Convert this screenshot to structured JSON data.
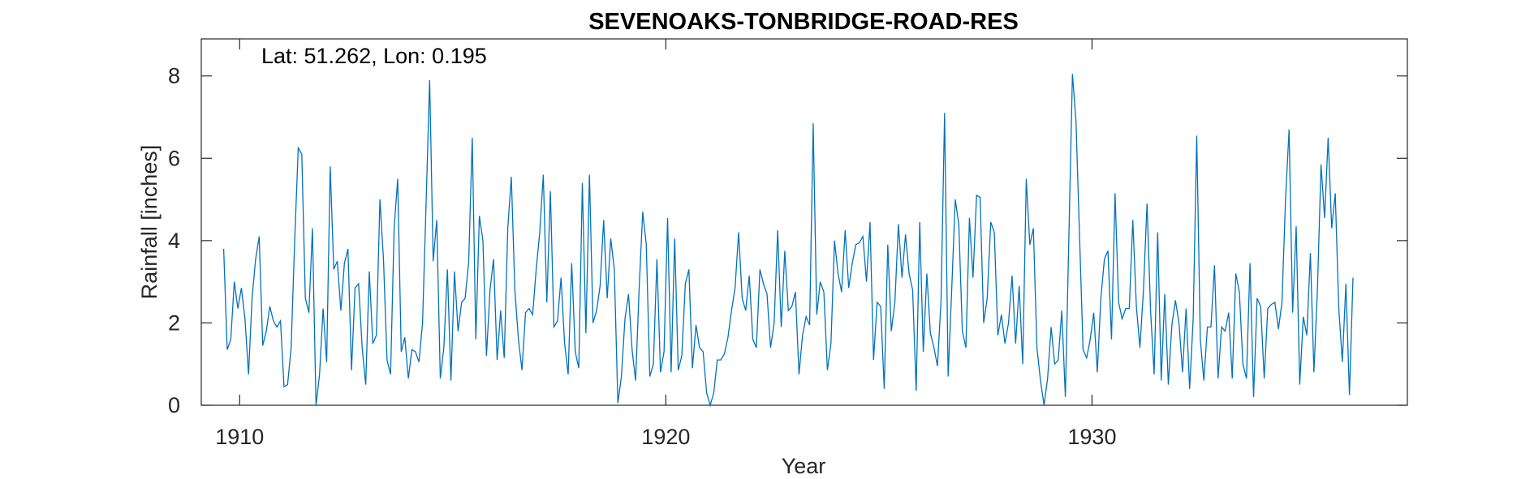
{
  "chart_data": {
    "type": "line",
    "title": "SEVENOAKS-TONBRIDGE-ROAD-RES",
    "xlabel": "Year",
    "ylabel": "Rainfall [inches]",
    "annotation": "Lat: 51.262, Lon: 0.195",
    "xlim": [
      1909.1,
      1937.4
    ],
    "ylim": [
      0,
      8.9
    ],
    "x_ticks": [
      1910,
      1920,
      1930
    ],
    "y_ticks": [
      0,
      2,
      4,
      6,
      8
    ],
    "grid": false,
    "line_color": "#0072BD",
    "series": [
      {
        "x_start": 1909.625,
        "x_step": 0.08333,
        "values": [
          3.8,
          1.35,
          1.6,
          3.0,
          2.35,
          2.85,
          2.1,
          0.75,
          2.6,
          3.55,
          4.1,
          1.45,
          1.8,
          2.4,
          2.05,
          1.9,
          2.05,
          0.45,
          0.5,
          1.4,
          4.0,
          6.25,
          6.1,
          2.6,
          2.25,
          4.3,
          0.0,
          0.75,
          2.35,
          1.05,
          5.8,
          3.3,
          3.5,
          2.3,
          3.45,
          3.8,
          0.85,
          2.85,
          2.95,
          1.4,
          0.5,
          3.25,
          1.5,
          1.7,
          5.0,
          3.55,
          1.1,
          0.75,
          4.3,
          5.5,
          1.3,
          1.65,
          0.65,
          1.35,
          1.3,
          1.05,
          2.0,
          4.9,
          7.9,
          3.5,
          4.5,
          0.65,
          1.4,
          3.3,
          0.6,
          3.25,
          1.8,
          2.5,
          2.6,
          3.5,
          6.5,
          1.6,
          4.6,
          4.0,
          1.2,
          2.8,
          3.55,
          1.1,
          2.3,
          1.15,
          4.3,
          5.55,
          2.8,
          1.6,
          0.85,
          2.25,
          2.35,
          2.2,
          3.3,
          4.2,
          5.6,
          2.5,
          5.2,
          1.9,
          2.05,
          3.1,
          1.5,
          0.75,
          3.45,
          1.3,
          0.9,
          5.4,
          1.75,
          5.6,
          2.0,
          2.3,
          2.9,
          4.5,
          2.6,
          4.05,
          3.3,
          0.05,
          0.7,
          2.1,
          2.7,
          1.35,
          0.6,
          2.85,
          4.7,
          3.9,
          0.7,
          1.0,
          3.55,
          0.8,
          1.3,
          4.55,
          0.8,
          4.05,
          0.85,
          1.2,
          2.95,
          3.3,
          0.9,
          1.95,
          1.4,
          1.3,
          0.3,
          0.0,
          0.3,
          1.1,
          1.1,
          1.25,
          1.65,
          2.3,
          2.85,
          4.2,
          2.6,
          2.3,
          3.15,
          1.6,
          1.4,
          3.3,
          2.95,
          2.7,
          1.4,
          2.0,
          4.25,
          1.9,
          3.75,
          2.3,
          2.4,
          2.75,
          0.75,
          1.7,
          2.15,
          1.95,
          6.85,
          2.2,
          3.0,
          2.75,
          0.85,
          1.5,
          4.0,
          3.2,
          2.75,
          4.25,
          2.85,
          3.45,
          3.9,
          3.95,
          4.1,
          3.0,
          4.45,
          1.1,
          2.5,
          2.4,
          0.4,
          3.9,
          1.8,
          2.5,
          4.4,
          3.1,
          4.15,
          3.2,
          2.8,
          0.35,
          4.45,
          1.3,
          3.2,
          1.75,
          1.4,
          0.95,
          2.55,
          7.1,
          0.7,
          2.8,
          5.0,
          4.4,
          1.8,
          1.4,
          4.55,
          3.1,
          5.1,
          5.05,
          2.0,
          2.6,
          4.45,
          4.2,
          1.7,
          2.2,
          1.5,
          2.0,
          3.15,
          1.5,
          2.9,
          1.0,
          5.5,
          3.9,
          4.3,
          1.4,
          0.6,
          0.0,
          0.65,
          1.9,
          1.0,
          1.1,
          2.3,
          0.2,
          4.1,
          8.05,
          6.9,
          4.1,
          1.35,
          1.15,
          1.6,
          2.25,
          0.8,
          2.6,
          3.55,
          3.75,
          1.6,
          5.15,
          2.5,
          2.1,
          2.35,
          2.35,
          4.5,
          2.4,
          1.4,
          2.8,
          4.9,
          2.3,
          0.75,
          4.2,
          0.6,
          2.7,
          0.5,
          1.95,
          2.55,
          2.0,
          0.8,
          2.35,
          0.4,
          2.1,
          6.55,
          1.6,
          0.6,
          1.9,
          1.9,
          3.4,
          0.65,
          1.9,
          1.8,
          2.25,
          0.65,
          3.2,
          2.75,
          1.0,
          0.65,
          3.45,
          0.2,
          2.6,
          2.4,
          0.65,
          2.35,
          2.45,
          2.5,
          1.85,
          2.5,
          5.0,
          6.7,
          2.25,
          4.35,
          0.5,
          2.15,
          1.7,
          3.7,
          0.8,
          2.85,
          5.85,
          4.55,
          6.5,
          4.3,
          5.15,
          2.35,
          1.05,
          2.95,
          0.25,
          3.1
        ]
      }
    ]
  }
}
